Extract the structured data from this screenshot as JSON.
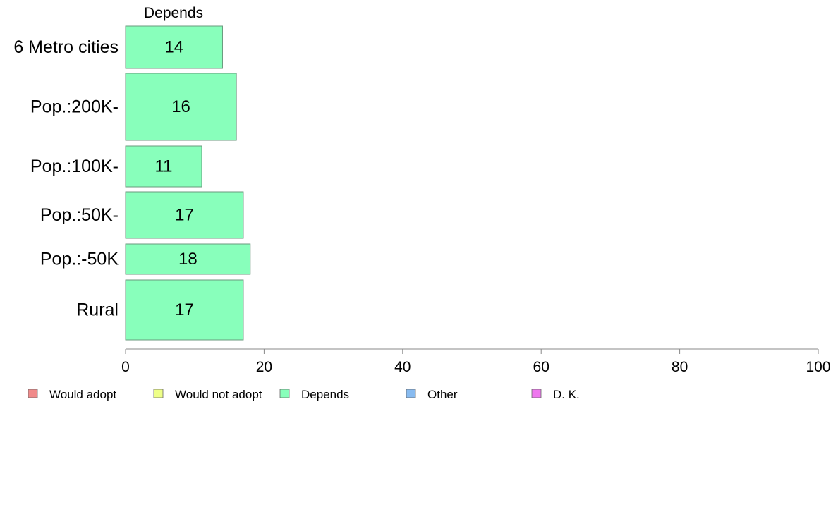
{
  "chart_data": {
    "type": "bar",
    "orientation": "horizontal",
    "title": "Depends",
    "categories": [
      "6 Metro cities",
      "Pop.:200K-",
      "Pop.:100K-",
      "Pop.:50K-",
      "Pop.:-50K",
      "Rural"
    ],
    "series": [
      {
        "name": "Depends",
        "values": [
          14,
          16,
          11,
          17,
          18,
          17
        ],
        "color": "#88ffbb"
      }
    ],
    "xlim": [
      0,
      100
    ],
    "xticks": [
      0,
      20,
      40,
      60,
      80,
      100
    ],
    "grid": false,
    "legend_position": "bottom",
    "legend": [
      {
        "label": "Would adopt",
        "color": "#f08a8a"
      },
      {
        "label": "Would not adopt",
        "color": "#eeff88"
      },
      {
        "label": "Depends",
        "color": "#88ffbb"
      },
      {
        "label": "Other",
        "color": "#88bbf0"
      },
      {
        "label": "D. K.",
        "color": "#ee77ee"
      }
    ]
  }
}
